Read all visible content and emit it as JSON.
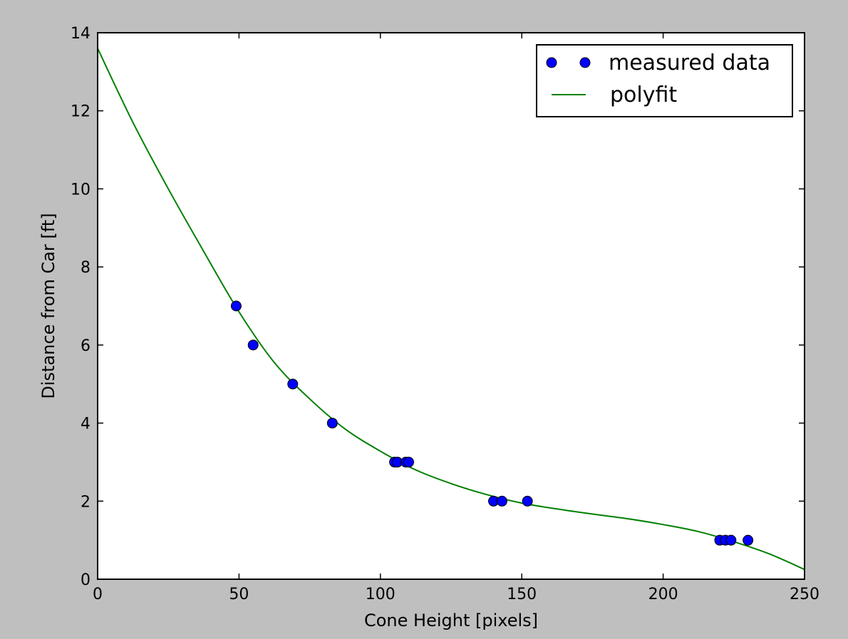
{
  "chart_data": {
    "type": "scatter",
    "title": "",
    "xlabel": "Cone Height [pixels]",
    "ylabel": "Distance from Car [ft]",
    "xlim": [
      0,
      250
    ],
    "ylim": [
      0,
      14
    ],
    "xticks": [
      0,
      50,
      100,
      150,
      200,
      250
    ],
    "yticks": [
      0,
      2,
      4,
      6,
      8,
      10,
      12,
      14
    ],
    "grid": false,
    "legend_position": "top-right",
    "series": [
      {
        "name": "measured data",
        "kind": "scatter",
        "color": "#0000ff",
        "x": [
          49,
          55,
          69,
          83,
          105,
          106,
          109,
          110,
          140,
          143,
          152,
          220,
          222,
          224,
          230
        ],
        "y": [
          7,
          6,
          5,
          4,
          3,
          3,
          3,
          3,
          2,
          2,
          2,
          1,
          1,
          1,
          1
        ]
      },
      {
        "name": "polyfit",
        "kind": "line",
        "color": "#008000",
        "x": [
          0,
          12.5,
          25,
          37.5,
          50,
          62.5,
          75,
          87.5,
          100,
          112.5,
          125,
          137.5,
          150,
          162.5,
          175,
          187.5,
          200,
          212.5,
          225,
          237.5,
          250
        ],
        "y": [
          13.6,
          11.7,
          10.0,
          8.4,
          6.85,
          5.55,
          4.62,
          3.85,
          3.28,
          2.8,
          2.45,
          2.17,
          1.95,
          1.8,
          1.67,
          1.55,
          1.4,
          1.22,
          0.96,
          0.65,
          0.25
        ]
      }
    ]
  }
}
